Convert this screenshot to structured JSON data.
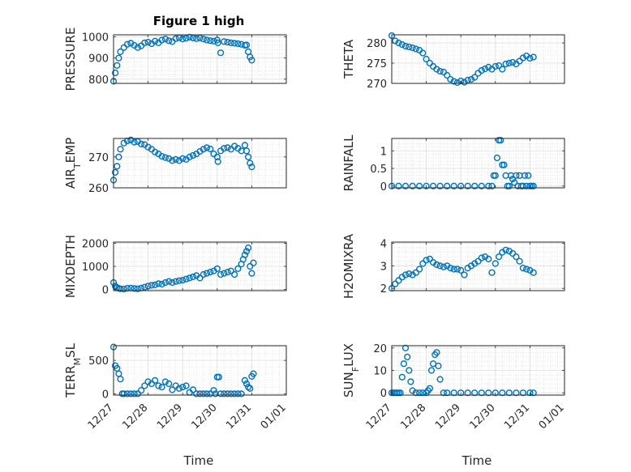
{
  "figure": {
    "title": "Figure 1 high",
    "xlabel": "Time",
    "xticks": [
      "12/27",
      "12/28",
      "12/29",
      "12/30",
      "12/31",
      "01/01"
    ],
    "marker_color": "#0072bd"
  },
  "chart_data": [
    {
      "type": "scatter",
      "ylabel": "PRESSURE",
      "ylabel_parts": [
        "PRESSURE"
      ],
      "ylim": [
        780,
        1010
      ],
      "yticks": [
        800,
        900,
        1000
      ],
      "xlim": [
        0,
        5
      ],
      "x": [
        0,
        0.05,
        0.1,
        0.15,
        0.2,
        0.3,
        0.4,
        0.5,
        0.6,
        0.7,
        0.8,
        0.9,
        1.0,
        1.1,
        1.2,
        1.3,
        1.4,
        1.5,
        1.6,
        1.7,
        1.8,
        1.9,
        2.0,
        2.1,
        2.2,
        2.3,
        2.4,
        2.5,
        2.6,
        2.7,
        2.8,
        2.9,
        3.0,
        3.02,
        3.1,
        3.2,
        3.3,
        3.4,
        3.5,
        3.6,
        3.7,
        3.8,
        3.85,
        3.9,
        3.95,
        4.0
      ],
      "y": [
        790,
        830,
        865,
        900,
        930,
        950,
        965,
        970,
        960,
        950,
        958,
        972,
        975,
        968,
        980,
        972,
        985,
        990,
        982,
        978,
        992,
        996,
        990,
        994,
        999,
        995,
        992,
        995,
        990,
        985,
        982,
        980,
        985,
        972,
        925,
        978,
        975,
        972,
        970,
        968,
        965,
        960,
        962,
        930,
        905,
        890
      ]
    },
    {
      "type": "scatter",
      "ylabel": "THETA",
      "ylabel_parts": [
        "THETA"
      ],
      "ylim": [
        270,
        282
      ],
      "yticks": [
        270,
        275,
        280
      ],
      "xlim": [
        0,
        5
      ],
      "x": [
        0,
        0.1,
        0.2,
        0.3,
        0.4,
        0.5,
        0.6,
        0.7,
        0.8,
        0.9,
        1.0,
        1.1,
        1.2,
        1.3,
        1.4,
        1.5,
        1.6,
        1.7,
        1.8,
        1.9,
        2.0,
        2.1,
        2.2,
        2.3,
        2.4,
        2.5,
        2.6,
        2.7,
        2.8,
        2.9,
        3.0,
        3.1,
        3.2,
        3.3,
        3.4,
        3.5,
        3.6,
        3.7,
        3.8,
        3.9,
        4.0,
        4.1
      ],
      "y": [
        281.8,
        280.5,
        280.0,
        279.6,
        279.2,
        279.0,
        278.8,
        278.5,
        278.2,
        277.5,
        276.0,
        275.0,
        274.2,
        273.5,
        273.0,
        272.8,
        272.0,
        271.0,
        270.5,
        270.2,
        270.6,
        270.3,
        270.8,
        271.0,
        271.5,
        272.5,
        273.2,
        273.6,
        274.0,
        273.5,
        274.2,
        274.4,
        273.5,
        274.8,
        275.0,
        275.2,
        274.8,
        275.5,
        276.3,
        276.8,
        276.2,
        276.5
      ]
    },
    {
      "type": "scatter",
      "ylabel": "AIR_TEMP",
      "ylabel_parts": [
        "AIR",
        "T",
        "EMP"
      ],
      "ylim": [
        260,
        276
      ],
      "yticks": [
        260,
        270
      ],
      "xlim": [
        0,
        5
      ],
      "x": [
        0,
        0.05,
        0.1,
        0.15,
        0.2,
        0.3,
        0.4,
        0.5,
        0.6,
        0.7,
        0.8,
        0.9,
        1.0,
        1.1,
        1.2,
        1.3,
        1.4,
        1.5,
        1.6,
        1.7,
        1.8,
        1.9,
        2.0,
        2.1,
        2.2,
        2.3,
        2.4,
        2.5,
        2.6,
        2.7,
        2.8,
        2.9,
        3.0,
        3.02,
        3.1,
        3.2,
        3.3,
        3.4,
        3.5,
        3.6,
        3.7,
        3.8,
        3.85,
        3.9,
        3.95,
        4.0
      ],
      "y": [
        262.5,
        265,
        267,
        270,
        272.5,
        274.5,
        275.2,
        275.5,
        274.8,
        275.0,
        274.2,
        274.0,
        273.2,
        272.5,
        271.6,
        271.0,
        270.2,
        269.8,
        269.5,
        268.8,
        269.2,
        268.8,
        269.5,
        269.2,
        270.0,
        270.5,
        271.0,
        271.8,
        272.5,
        273.0,
        272.6,
        271.0,
        270.0,
        268.5,
        272.0,
        272.8,
        273.0,
        272.5,
        273.5,
        272.8,
        272.0,
        273.8,
        272.0,
        270.0,
        268.0,
        266.8
      ]
    },
    {
      "type": "scatter",
      "ylabel": "RAINFALL",
      "ylabel_parts": [
        "RAINFALL"
      ],
      "ylim": [
        -0.05,
        1.35
      ],
      "yticks": [
        0,
        0.5,
        1
      ],
      "ytick_labels": [
        "0",
        "0.5",
        "1"
      ],
      "xlim": [
        0,
        5
      ],
      "x": [
        0,
        0.2,
        0.4,
        0.6,
        0.8,
        1.0,
        1.2,
        1.4,
        1.6,
        1.8,
        2.0,
        2.2,
        2.4,
        2.6,
        2.8,
        2.9,
        2.95,
        3.0,
        3.05,
        3.1,
        3.15,
        3.2,
        3.25,
        3.3,
        3.35,
        3.4,
        3.45,
        3.5,
        3.55,
        3.6,
        3.65,
        3.7,
        3.75,
        3.8,
        3.85,
        3.9,
        3.95,
        4.0,
        4.05,
        4.1
      ],
      "y": [
        0,
        0,
        0,
        0,
        0,
        0,
        0,
        0,
        0,
        0,
        0,
        0,
        0,
        0,
        0,
        0,
        0.3,
        0.3,
        0.8,
        1.3,
        1.3,
        0.6,
        0.6,
        0.3,
        0,
        0,
        0.3,
        0.2,
        0.1,
        0.3,
        0,
        0.3,
        0,
        0,
        0.3,
        0,
        0.3,
        0,
        0,
        0
      ]
    },
    {
      "type": "scatter",
      "ylabel": "MIXDEPTH",
      "ylabel_parts": [
        "MIXDEPTH"
      ],
      "ylim": [
        -50,
        2050
      ],
      "yticks": [
        0,
        1000,
        2000
      ],
      "xlim": [
        0,
        5
      ],
      "x": [
        0,
        0.05,
        0.1,
        0.15,
        0.2,
        0.3,
        0.4,
        0.5,
        0.6,
        0.7,
        0.8,
        0.9,
        1.0,
        1.1,
        1.2,
        1.3,
        1.4,
        1.5,
        1.6,
        1.7,
        1.8,
        1.9,
        2.0,
        2.1,
        2.2,
        2.3,
        2.4,
        2.5,
        2.6,
        2.7,
        2.8,
        2.9,
        3.0,
        3.1,
        3.2,
        3.3,
        3.4,
        3.5,
        3.6,
        3.7,
        3.75,
        3.8,
        3.85,
        3.9,
        3.95,
        4.0,
        4.05
      ],
      "y": [
        300,
        150,
        80,
        50,
        30,
        20,
        50,
        60,
        40,
        30,
        60,
        100,
        150,
        180,
        200,
        250,
        230,
        300,
        350,
        300,
        350,
        380,
        400,
        450,
        500,
        550,
        600,
        500,
        650,
        700,
        750,
        800,
        900,
        650,
        700,
        750,
        800,
        650,
        900,
        1100,
        1300,
        1500,
        1650,
        1800,
        1000,
        700,
        1150
      ]
    },
    {
      "type": "scatter",
      "ylabel": "H2OMIXRA",
      "ylabel_parts": [
        "H2OMIXRA"
      ],
      "ylim": [
        1.9,
        4.05
      ],
      "yticks": [
        2,
        3,
        4
      ],
      "xlim": [
        0,
        5
      ],
      "x": [
        0,
        0.1,
        0.2,
        0.3,
        0.4,
        0.5,
        0.6,
        0.7,
        0.8,
        0.9,
        1.0,
        1.1,
        1.2,
        1.3,
        1.4,
        1.5,
        1.6,
        1.7,
        1.8,
        1.9,
        2.0,
        2.1,
        2.2,
        2.3,
        2.4,
        2.5,
        2.6,
        2.7,
        2.8,
        2.9,
        3.0,
        3.1,
        3.2,
        3.3,
        3.4,
        3.5,
        3.6,
        3.7,
        3.8,
        3.9,
        4.0,
        4.1
      ],
      "y": [
        2.0,
        2.2,
        2.35,
        2.5,
        2.6,
        2.65,
        2.6,
        2.7,
        2.85,
        3.1,
        3.25,
        3.3,
        3.15,
        3.05,
        3.0,
        2.95,
        3.0,
        2.9,
        2.85,
        2.85,
        2.8,
        2.6,
        2.9,
        3.0,
        3.1,
        3.2,
        3.35,
        3.4,
        3.3,
        2.7,
        3.1,
        3.4,
        3.6,
        3.7,
        3.65,
        3.55,
        3.4,
        3.2,
        2.9,
        2.85,
        2.8,
        2.7
      ]
    },
    {
      "type": "scatter",
      "ylabel": "TERR_MSL",
      "ylabel_parts": [
        "TERR",
        "M",
        "SL"
      ],
      "ylim": [
        -20,
        720
      ],
      "yticks": [
        0,
        500
      ],
      "xlim": [
        0,
        5
      ],
      "x": [
        0,
        0.05,
        0.1,
        0.15,
        0.2,
        0.25,
        0.3,
        0.4,
        0.5,
        0.6,
        0.7,
        0.8,
        0.9,
        1.0,
        1.1,
        1.2,
        1.3,
        1.4,
        1.5,
        1.6,
        1.7,
        1.8,
        1.9,
        2.0,
        2.1,
        2.2,
        2.3,
        2.4,
        2.5,
        2.6,
        2.7,
        2.8,
        2.9,
        2.95,
        3.0,
        3.05,
        3.1,
        3.2,
        3.3,
        3.4,
        3.5,
        3.6,
        3.7,
        3.8,
        3.85,
        3.9,
        3.95,
        4.0,
        4.05
      ],
      "y": [
        700,
        420,
        380,
        300,
        220,
        0,
        0,
        0,
        0,
        0,
        0,
        50,
        120,
        180,
        150,
        200,
        120,
        100,
        180,
        150,
        60,
        120,
        80,
        100,
        120,
        20,
        60,
        0,
        0,
        0,
        0,
        0,
        50,
        0,
        250,
        250,
        0,
        0,
        0,
        0,
        0,
        0,
        0,
        200,
        150,
        100,
        80,
        260,
        300
      ]
    },
    {
      "type": "scatter",
      "ylabel": "SUN_FLUX",
      "ylabel_parts": [
        "SUN",
        "F",
        "LUX"
      ],
      "ylim": [
        -1,
        21
      ],
      "yticks": [
        0,
        10,
        20
      ],
      "xlim": [
        0,
        5
      ],
      "x": [
        0,
        0.05,
        0.1,
        0.15,
        0.2,
        0.25,
        0.3,
        0.35,
        0.4,
        0.45,
        0.5,
        0.55,
        0.6,
        0.7,
        0.8,
        0.9,
        1.0,
        1.05,
        1.1,
        1.15,
        1.2,
        1.25,
        1.3,
        1.35,
        1.4,
        1.5,
        1.6,
        1.8,
        2.0,
        2.2,
        2.4,
        2.6,
        2.8,
        3.0,
        3.2,
        3.4,
        3.6,
        3.8,
        4.0,
        4.1
      ],
      "y": [
        0,
        0,
        0,
        0,
        0,
        0,
        7,
        13,
        20,
        16,
        10,
        5,
        1,
        0,
        0,
        0,
        0,
        1,
        2,
        10,
        13,
        17,
        18,
        12,
        6,
        0,
        0,
        0,
        0,
        0,
        0,
        0,
        0,
        0,
        0,
        0,
        0,
        0,
        0,
        0
      ]
    }
  ]
}
